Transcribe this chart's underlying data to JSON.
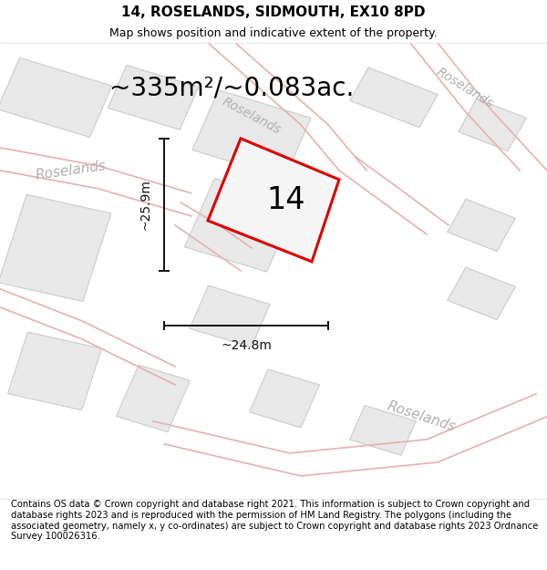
{
  "title": "14, ROSELANDS, SIDMOUTH, EX10 8PD",
  "subtitle": "Map shows position and indicative extent of the property.",
  "footer": "Contains OS data © Crown copyright and database right 2021. This information is subject to Crown copyright and database rights 2023 and is reproduced with the permission of HM Land Registry. The polygons (including the associated geometry, namely x, y co-ordinates) are subject to Crown copyright and database rights 2023 Ordnance Survey 100026316.",
  "area_label": "~335m²/~0.083ac.",
  "width_label": "~24.8m",
  "height_label": "~25.9m",
  "property_number": "14",
  "bg_color": "#ffffff",
  "road_line_color": "#e8b0b0",
  "block_color": "#e8e8e8",
  "block_stroke": "#cccccc",
  "plot_stroke": "#dd0000",
  "plot_fill": "#f5f5f5",
  "dim_color": "#111111",
  "street_label_color": "#b0b0b0",
  "title_fontsize": 11,
  "subtitle_fontsize": 9,
  "footer_fontsize": 7.2,
  "area_fontsize": 20,
  "dim_fontsize": 10,
  "number_fontsize": 24,
  "street_fontsize": 11
}
